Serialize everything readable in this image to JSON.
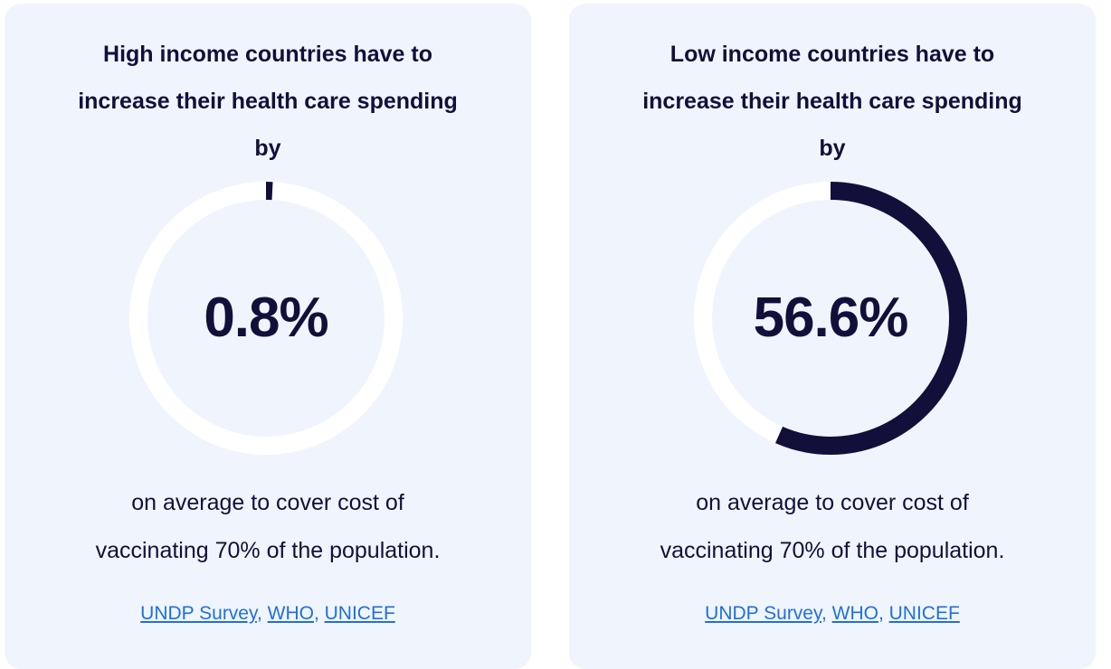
{
  "cards": [
    {
      "title_line1": "High income countries have to",
      "title_line2": "increase their health care spending",
      "title_line3": "by",
      "value_text": "0.8%",
      "progress_percent": 0.8,
      "subtitle_line1": "on average to cover cost of",
      "subtitle_line2": "vaccinating 70% of the population.",
      "sources": [
        "UNDP Survey",
        "WHO",
        "UNICEF"
      ],
      "separator": ","
    },
    {
      "title_line1": "Low income countries have to",
      "title_line2": "increase their health care spending",
      "title_line3": "by",
      "value_text": "56.6%",
      "progress_percent": 56.6,
      "subtitle_line1": "on average to cover cost of",
      "subtitle_line2": "vaccinating 70% of the population.",
      "sources": [
        "UNDP Survey",
        "WHO",
        "UNICEF"
      ],
      "separator": ","
    }
  ],
  "colors": {
    "card_background": "#f0f5fd",
    "ring_track": "#ffffff",
    "ring_fill": "#12103a",
    "text_dark": "#12103a",
    "link": "#1f6fde"
  }
}
